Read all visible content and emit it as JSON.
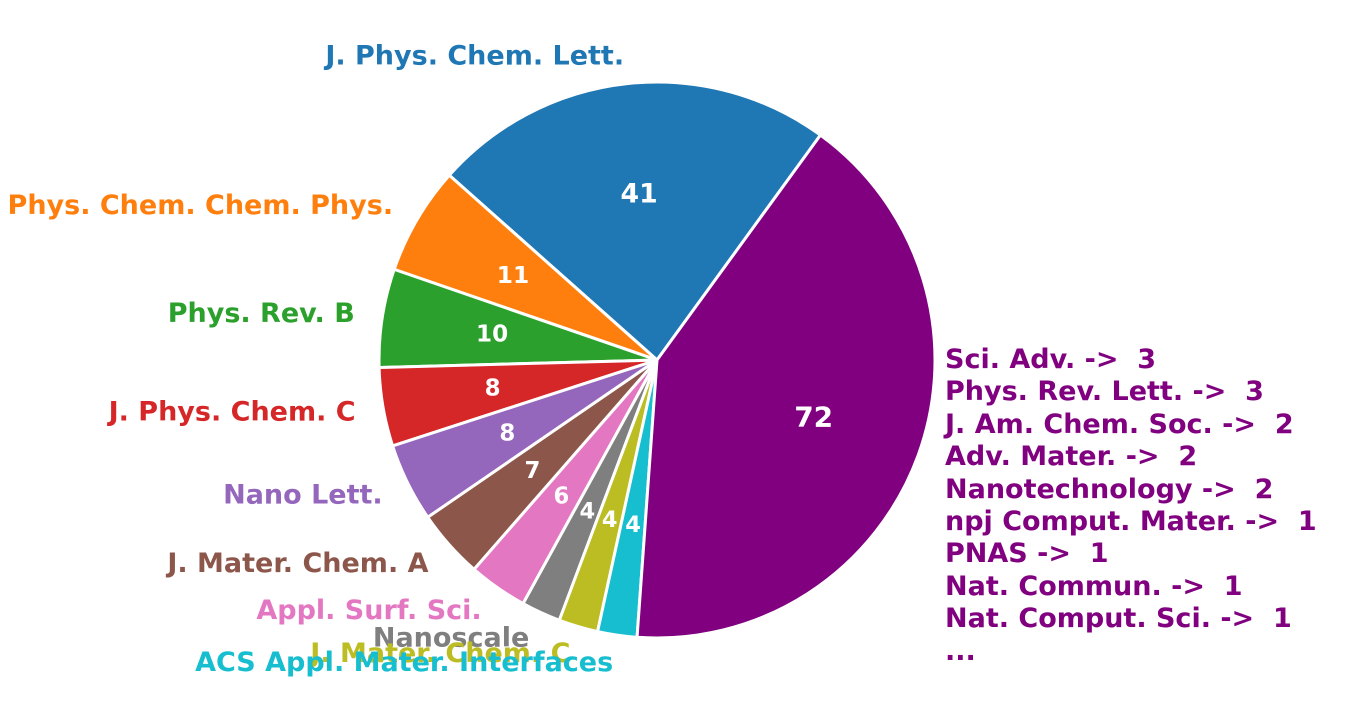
{
  "chart_data": {
    "type": "pie",
    "title": "",
    "slices": [
      {
        "label": "J. Phys. Chem. Lett.",
        "value": 41,
        "color": "#1f77b4"
      },
      {
        "label": "Phys. Chem. Chem. Phys.",
        "value": 11,
        "color": "#ff7f0e"
      },
      {
        "label": "Phys. Rev. B",
        "value": 10,
        "color": "#2ca02c"
      },
      {
        "label": "J. Phys. Chem. C",
        "value": 8,
        "color": "#d62728"
      },
      {
        "label": "Nano Lett.",
        "value": 8,
        "color": "#9467bd"
      },
      {
        "label": "J. Mater. Chem. A",
        "value": 7,
        "color": "#8c564b"
      },
      {
        "label": "Appl. Surf. Sci.",
        "value": 6,
        "color": "#e377c2"
      },
      {
        "label": "Nanoscale",
        "value": 4,
        "color": "#7f7f7f"
      },
      {
        "label": "J. Mater. Chem. C",
        "value": 4,
        "color": "#bcbd22"
      },
      {
        "label": "ACS Appl. Mater. Interfaces",
        "value": 4,
        "color": "#17becf"
      },
      {
        "label": "",
        "value": 72,
        "color": "#800080"
      }
    ],
    "others_breakdown": [
      "Sci. Adv. ->  3",
      "Phys. Rev. Lett. ->  3",
      "J. Am. Chem. Soc. ->  2",
      "Adv. Mater. ->  2",
      "Nanotechnology ->  2",
      "npj Comput. Mater. ->  1",
      "PNAS ->  1",
      "Nat. Commun. ->  1",
      "Nat. Comput. Sci. ->  1",
      "..."
    ],
    "start_angle_deg": 54,
    "direction": "counterclockwise",
    "value_label_color": "#ffffff",
    "wedge_edge_color": "#ffffff"
  }
}
